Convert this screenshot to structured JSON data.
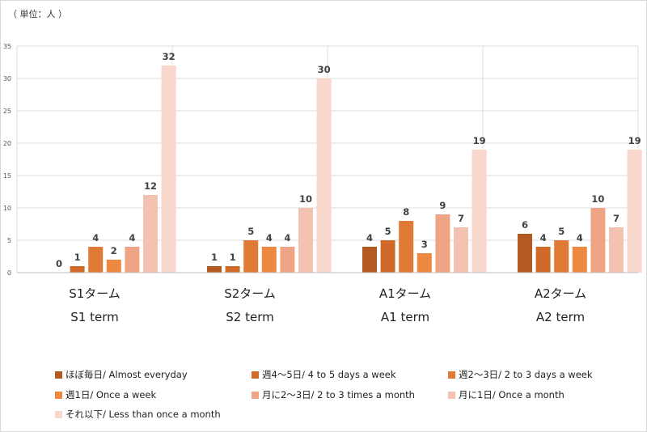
{
  "unit_label": "（ 単位：人 ）",
  "colors": [
    "#b35a22",
    "#cf6a28",
    "#e07a35",
    "#ee8840",
    "#efa585",
    "#f4c2b3",
    "#f8d7cc"
  ],
  "chart_data": {
    "type": "bar",
    "title": "",
    "xlabel": "",
    "ylabel": "",
    "ylim": [
      0,
      35
    ],
    "yticks": [
      0,
      5,
      10,
      15,
      20,
      25,
      30,
      35
    ],
    "grid": true,
    "legend_position": "bottom",
    "categories": [
      {
        "jp": "S1ターム",
        "en": "S1 term"
      },
      {
        "jp": "S2ターム",
        "en": "S2 term"
      },
      {
        "jp": "A1ターム",
        "en": "A1 term"
      },
      {
        "jp": "A2ターム",
        "en": "A2 term"
      }
    ],
    "series": [
      {
        "name": "ほぼ毎日/ Almost everyday",
        "values": [
          0,
          1,
          4,
          6
        ]
      },
      {
        "name": "週4〜5日/ 4 to 5 days a week",
        "values": [
          1,
          1,
          5,
          4
        ]
      },
      {
        "name": "週2〜3日/ 2 to 3 days a week",
        "values": [
          4,
          5,
          8,
          5
        ]
      },
      {
        "name": "週1日/ Once a week",
        "values": [
          2,
          4,
          3,
          4
        ]
      },
      {
        "name": "月に2〜3日/ 2 to 3 times a month",
        "values": [
          4,
          4,
          9,
          10
        ]
      },
      {
        "name": "月に1日/ Once a month",
        "values": [
          12,
          10,
          7,
          7
        ]
      },
      {
        "name": "それ以下/ Less than once a month",
        "values": [
          32,
          30,
          19,
          19
        ]
      }
    ]
  }
}
